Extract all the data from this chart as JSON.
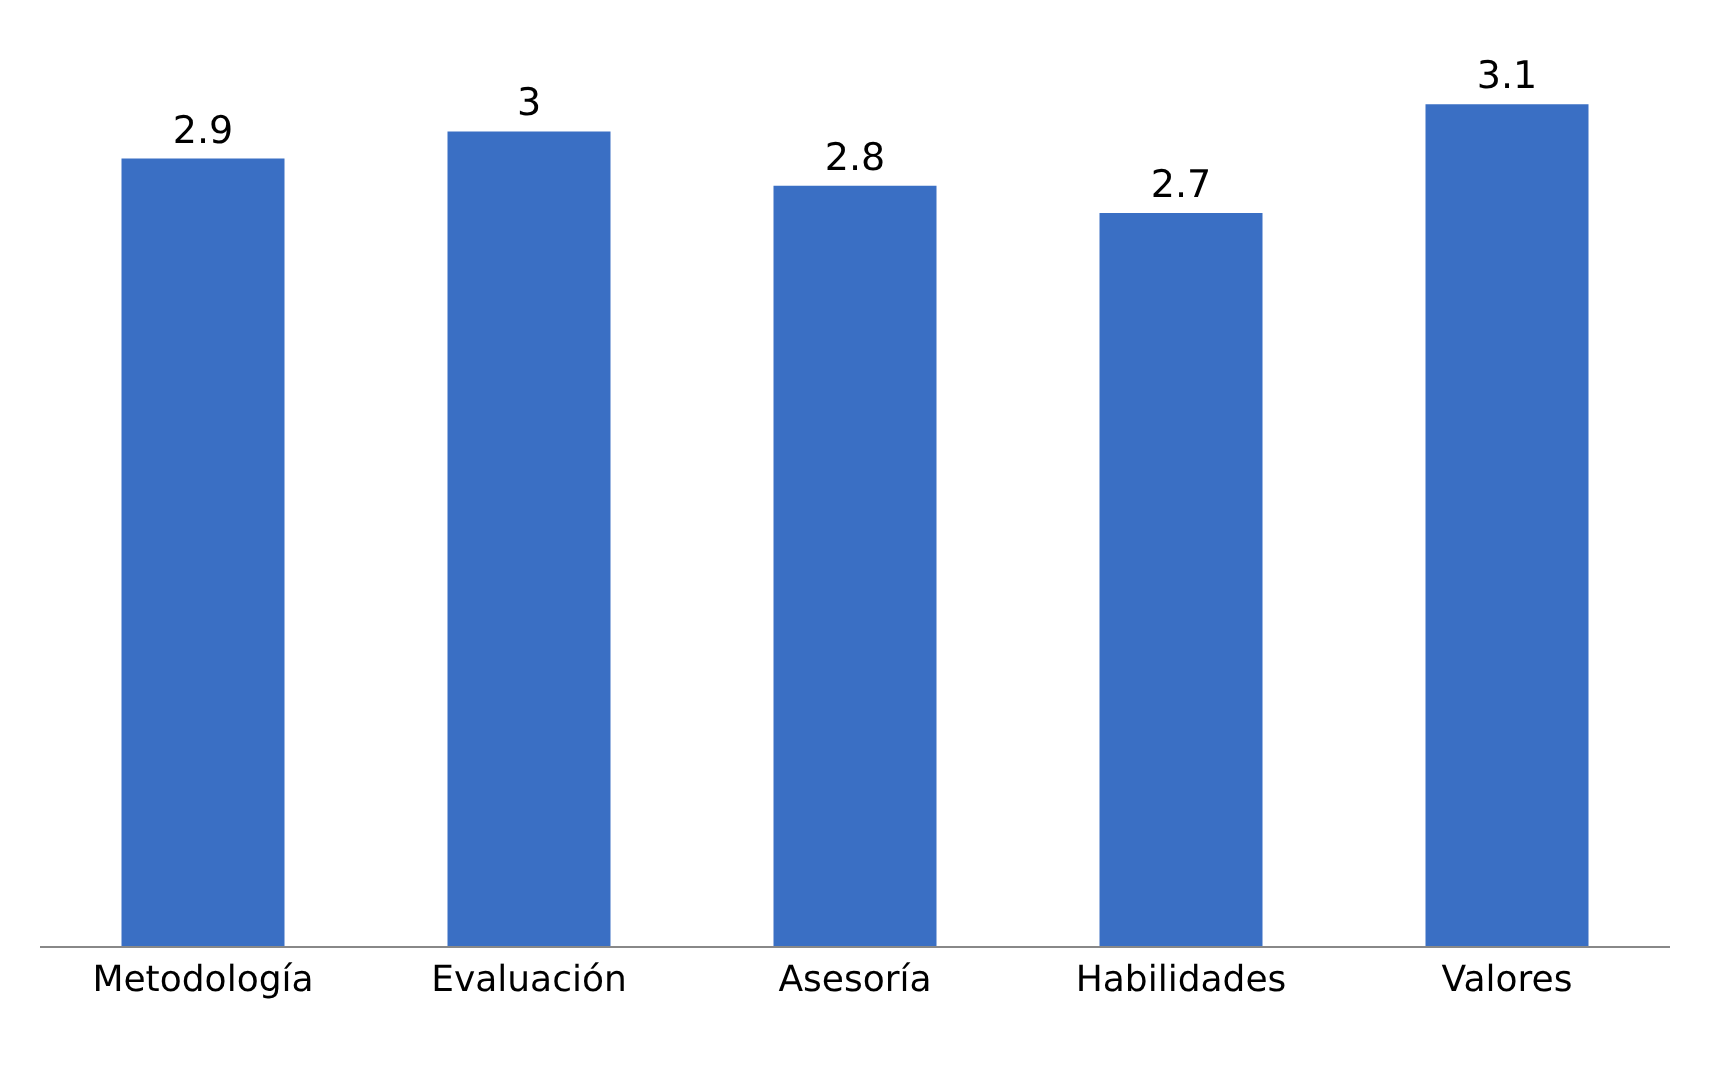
{
  "chart_data": {
    "type": "bar",
    "categories": [
      "Metodología",
      "Evaluación",
      "Asesoría",
      "Habilidades",
      "Valores"
    ],
    "values": [
      2.9,
      3,
      2.8,
      2.7,
      3.1
    ],
    "color": "#3a6fc4",
    "data_labels": true,
    "tick_labels": "x"
  }
}
